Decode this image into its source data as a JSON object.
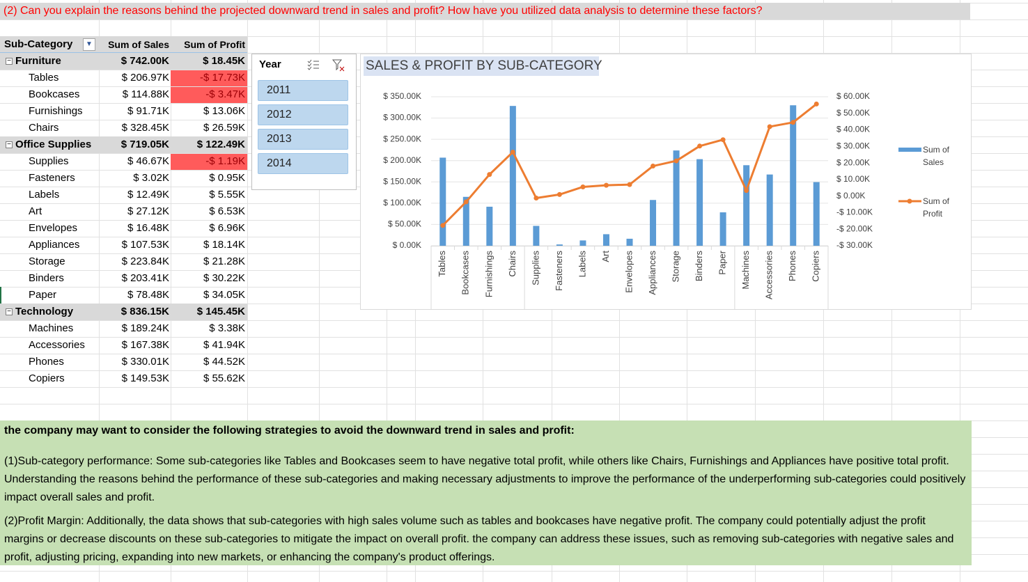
{
  "question": "(2) Can you explain the reasons behind the projected downward trend in sales and profit? How have you utilized data analysis to determine these factors?",
  "pivot": {
    "headers": [
      "Sub-Category",
      "Sum of Sales",
      "Sum of Profit"
    ],
    "groups": [
      {
        "name": "Furniture",
        "sales": "$ 742.00K",
        "profit": "$ 18.45K",
        "rows": [
          [
            "Tables",
            "$ 206.97K",
            "-$ 17.73K"
          ],
          [
            "Bookcases",
            "$ 114.88K",
            "-$ 3.47K"
          ],
          [
            "Furnishings",
            "$ 91.71K",
            "$ 13.06K"
          ],
          [
            "Chairs",
            "$ 328.45K",
            "$ 26.59K"
          ]
        ]
      },
      {
        "name": "Office Supplies",
        "sales": "$ 719.05K",
        "profit": "$ 122.49K",
        "rows": [
          [
            "Supplies",
            "$ 46.67K",
            "-$ 1.19K"
          ],
          [
            "Fasteners",
            "$ 3.02K",
            "$ 0.95K"
          ],
          [
            "Labels",
            "$ 12.49K",
            "$ 5.55K"
          ],
          [
            "Art",
            "$ 27.12K",
            "$ 6.53K"
          ],
          [
            "Envelopes",
            "$ 16.48K",
            "$ 6.96K"
          ],
          [
            "Appliances",
            "$ 107.53K",
            "$ 18.14K"
          ],
          [
            "Storage",
            "$ 223.84K",
            "$ 21.28K"
          ],
          [
            "Binders",
            "$ 203.41K",
            "$ 30.22K"
          ],
          [
            "Paper",
            "$ 78.48K",
            "$ 34.05K"
          ]
        ]
      },
      {
        "name": "Technology",
        "sales": "$ 836.15K",
        "profit": "$ 145.45K",
        "rows": [
          [
            "Machines",
            "$ 189.24K",
            "$ 3.38K"
          ],
          [
            "Accessories",
            "$ 167.38K",
            "$ 41.94K"
          ],
          [
            "Phones",
            "$ 330.01K",
            "$ 44.52K"
          ],
          [
            "Copiers",
            "$ 149.53K",
            "$ 55.62K"
          ]
        ]
      }
    ]
  },
  "slicer": {
    "title": "Year",
    "items": [
      "2011",
      "2012",
      "2013",
      "2014"
    ]
  },
  "chart_data": {
    "type": "combo",
    "title": "SALES & PROFIT BY SUB-CATEGORY",
    "categories": [
      "Tables",
      "Bookcases",
      "Furnishings",
      "Chairs",
      "Supplies",
      "Fasteners",
      "Labels",
      "Art",
      "Envelopes",
      "Appliances",
      "Storage",
      "Binders",
      "Paper",
      "Machines",
      "Accessories",
      "Phones",
      "Copiers"
    ],
    "series": [
      {
        "name": "Sum of Sales",
        "type": "bar",
        "color": "#5b9bd5",
        "values": [
          206.97,
          114.88,
          91.71,
          328.45,
          46.67,
          3.02,
          12.49,
          27.12,
          16.48,
          107.53,
          223.84,
          203.41,
          78.48,
          189.24,
          167.38,
          330.01,
          149.53
        ]
      },
      {
        "name": "Sum of Profit",
        "type": "line",
        "color": "#ed7d31",
        "axis": "y2",
        "values": [
          -17.73,
          -3.47,
          13.06,
          26.59,
          -1.19,
          0.95,
          5.55,
          6.53,
          6.96,
          18.14,
          21.28,
          30.22,
          34.05,
          3.38,
          41.94,
          44.52,
          55.62
        ]
      }
    ],
    "ylim": [
      0,
      350
    ],
    "yticks": [
      {
        "value": 0,
        "label": "$ 0.00K"
      },
      {
        "value": 50,
        "label": "$ 50.00K"
      },
      {
        "value": 100,
        "label": "$ 100.00K"
      },
      {
        "value": 150,
        "label": "$ 150.00K"
      },
      {
        "value": 200,
        "label": "$ 200.00K"
      },
      {
        "value": 250,
        "label": "$ 250.00K"
      },
      {
        "value": 300,
        "label": "$ 300.00K"
      },
      {
        "value": 350,
        "label": "$ 350.00K"
      }
    ],
    "y2lim": [
      -30,
      60
    ],
    "y2ticks": [
      {
        "value": -30,
        "label": "-$ 30.00K"
      },
      {
        "value": -20,
        "label": "-$ 20.00K"
      },
      {
        "value": -10,
        "label": "-$ 10.00K"
      },
      {
        "value": 0,
        "label": "$ 0.00K"
      },
      {
        "value": 10,
        "label": "$ 10.00K"
      },
      {
        "value": 20,
        "label": "$ 20.00K"
      },
      {
        "value": 30,
        "label": "$ 30.00K"
      },
      {
        "value": 40,
        "label": "$ 40.00K"
      },
      {
        "value": 50,
        "label": "$ 50.00K"
      },
      {
        "value": 60,
        "label": "$ 60.00K"
      }
    ],
    "grid": true,
    "legend": "right"
  },
  "notes": {
    "heading": "the company may want to consider the following strategies to avoid the downward trend in sales and profit:",
    "paragraphs": [
      "(1)Sub-category performance: Some sub-categories like Tables and Bookcases seem to have negative total profit, while others like Chairs, Furnishings and Appliances have positive total profit. Understanding the reasons behind the performance of these sub-categories and making necessary adjustments to improve the performance of the underperforming sub-categories could positively impact overall sales and profit.",
      "(2)Profit Margin: Additionally, the data shows that sub-categories with high sales volume such as tables and bookcases have negative profit. The company could potentially adjust the profit margins or decrease discounts on these sub-categories to mitigate the impact on overall profit.    the company can address these issues, such as removing sub-categories with negative sales and profit, adjusting pricing, expanding into new markets, or enhancing the company's product offerings."
    ]
  }
}
